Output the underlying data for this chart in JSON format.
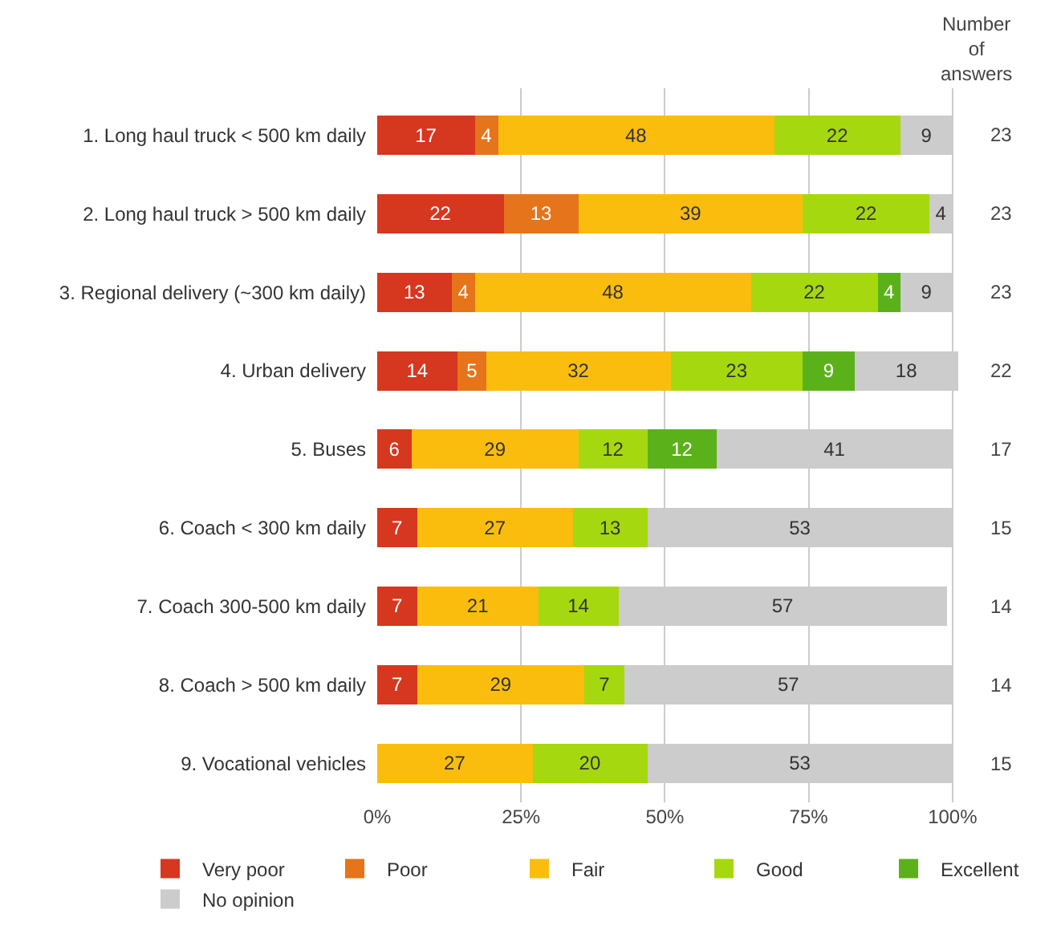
{
  "chart_data": {
    "type": "bar",
    "orientation": "horizontal",
    "stacked": true,
    "data_labels": true,
    "categories": [
      "1. Long haul truck < 500 km daily",
      "2. Long haul truck > 500 km daily",
      "3. Regional delivery (~300 km daily)",
      "4. Urban delivery",
      "5. Buses",
      "6. Coach < 300 km daily",
      "7. Coach 300-500 km daily",
      "8. Coach > 500 km daily",
      "9. Vocational vehicles"
    ],
    "series": [
      {
        "name": "Very poor",
        "color": "#d6371f",
        "values": [
          17,
          22,
          13,
          14,
          6,
          7,
          7,
          7,
          null
        ]
      },
      {
        "name": "Poor",
        "color": "#e5741b",
        "values": [
          4,
          13,
          4,
          5,
          null,
          null,
          null,
          null,
          null
        ]
      },
      {
        "name": "Fair",
        "color": "#fbbd0d",
        "values": [
          48,
          39,
          48,
          32,
          29,
          27,
          21,
          29,
          27
        ]
      },
      {
        "name": "Good",
        "color": "#a5d80f",
        "values": [
          22,
          22,
          22,
          23,
          12,
          13,
          14,
          7,
          20
        ]
      },
      {
        "name": "Excellent",
        "color": "#5bb11a",
        "values": [
          null,
          null,
          4,
          9,
          12,
          null,
          null,
          null,
          null
        ]
      },
      {
        "name": "No opinion",
        "color": "#cccccc",
        "values": [
          9,
          4,
          9,
          18,
          41,
          53,
          57,
          57,
          53
        ]
      }
    ],
    "xlim": [
      0,
      101
    ],
    "xticks": [
      {
        "value": 0,
        "label": "0%"
      },
      {
        "value": 25,
        "label": "25%"
      },
      {
        "value": 50,
        "label": "50%"
      },
      {
        "value": 75,
        "label": "75%"
      },
      {
        "value": 100,
        "label": "100%"
      }
    ],
    "grid": "x",
    "legend": "bottom",
    "annotations": [
      "Number of answers",
      "23",
      "23",
      "23",
      "22",
      "17",
      "15",
      "14",
      "14",
      "15"
    ]
  }
}
